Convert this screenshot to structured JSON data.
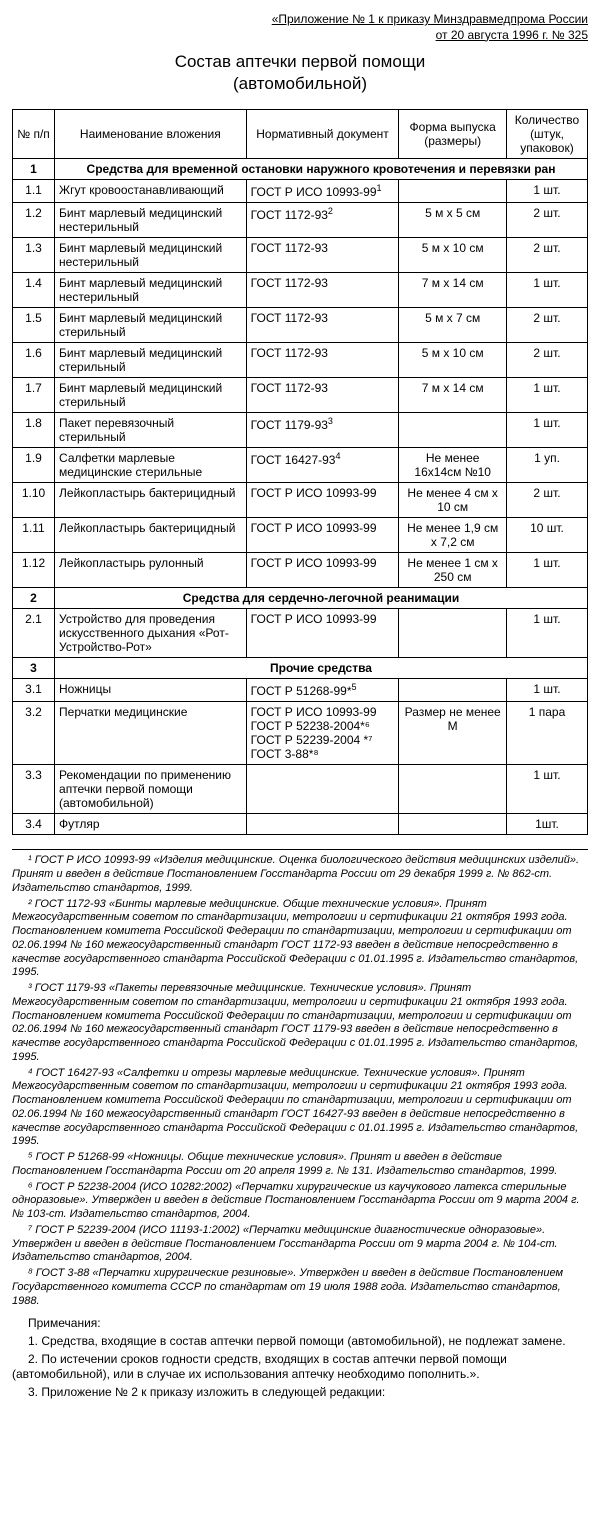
{
  "header_ref_line1": "«Приложение № 1 к приказу Минздравмедпрома России",
  "header_ref_line2": "от 20 августа 1996 г. № 325",
  "title_line1": "Состав аптечки первой помощи",
  "title_line2": "(автомобильной)",
  "columns": {
    "num": "№\nп/п",
    "name": "Наименование вложения",
    "doc": "Нормативный\nдокумент",
    "form": "Форма\nвыпуска\n(размеры)",
    "qty": "Количество\n(штук,\nупаковок)"
  },
  "sections": [
    {
      "num": "1",
      "title": "Средства для временной остановки наружного кровотечения и перевязки ран",
      "rows": [
        {
          "num": "1.1",
          "name": "Жгут кровоостанавливающий",
          "doc": "ГОСТ Р ИСО 10993-99",
          "sup": "1",
          "form": "",
          "qty": "1 шт."
        },
        {
          "num": "1.2",
          "name": "Бинт марлевый медицинский нестерильный",
          "doc": "ГОСТ 1172-93",
          "sup": "2",
          "form": "5 м х 5 см",
          "qty": "2 шт."
        },
        {
          "num": "1.3",
          "name": "Бинт марлевый медицинский нестерильный",
          "doc": "ГОСТ 1172-93",
          "form": "5 м х 10 см",
          "qty": "2 шт."
        },
        {
          "num": "1.4",
          "name": "Бинт марлевый медицинский нестерильный",
          "doc": "ГОСТ 1172-93",
          "form": "7 м х 14 см",
          "qty": "1 шт."
        },
        {
          "num": "1.5",
          "name": "Бинт марлевый медицинский стерильный",
          "doc": "ГОСТ 1172-93",
          "form": "5 м х 7 см",
          "qty": "2 шт."
        },
        {
          "num": "1.6",
          "name": "Бинт марлевый медицинский стерильный",
          "doc": "ГОСТ 1172-93",
          "form": "5 м х 10 см",
          "qty": "2 шт."
        },
        {
          "num": "1.7",
          "name": "Бинт марлевый медицинский стерильный",
          "doc": "ГОСТ 1172-93",
          "form": "7 м х 14 см",
          "qty": "1 шт."
        },
        {
          "num": "1.8",
          "name": "Пакет перевязочный стерильный",
          "doc": "ГОСТ 1179-93",
          "sup": "3",
          "form": "",
          "qty": "1 шт."
        },
        {
          "num": "1.9",
          "name": "Салфетки марлевые медицинские стерильные",
          "doc": "ГОСТ 16427-93",
          "sup": "4",
          "form": "Не менее 16х14см №10",
          "qty": "1 уп."
        },
        {
          "num": "1.10",
          "name": "Лейкопластырь бактерицидный",
          "doc": "ГОСТ Р ИСО 10993-99",
          "form": "Не менее 4 см х 10 см",
          "qty": "2 шт."
        },
        {
          "num": "1.11",
          "name": "Лейкопластырь бактерицидный",
          "doc": "ГОСТ Р ИСО 10993-99",
          "form": "Не менее 1,9 см х 7,2 см",
          "qty": "10 шт."
        },
        {
          "num": "1.12",
          "name": "Лейкопластырь рулонный",
          "doc": "ГОСТ Р ИСО 10993-99",
          "form": "Не менее 1 см х 250 см",
          "qty": "1 шт."
        }
      ]
    },
    {
      "num": "2",
      "title": "Средства для сердечно-легочной реанимации",
      "rows": [
        {
          "num": "2.1",
          "name": "Устройство для проведения искусственного дыхания «Рот-Устройство-Рот»",
          "doc": "ГОСТ Р ИСО 10993-99",
          "form": "",
          "qty": "1 шт."
        }
      ]
    },
    {
      "num": "3",
      "title": "Прочие средства",
      "rows": [
        {
          "num": "3.1",
          "name": "Ножницы",
          "doc": "ГОСТ Р 51268-99*",
          "sup": "5",
          "form": "",
          "qty": "1 шт."
        },
        {
          "num": "3.2",
          "name": "Перчатки медицинские",
          "doc": "ГОСТ Р ИСО 10993-99\nГОСТ Р 52238-2004*⁶\nГОСТ Р 52239-2004 *⁷\nГОСТ 3-88*⁸",
          "form": "Размер не менее M",
          "qty": "1 пара"
        },
        {
          "num": "3.3",
          "name": "Рекомендации по применению аптечки первой помощи (автомобильной)",
          "doc": "",
          "form": "",
          "qty": "1 шт."
        },
        {
          "num": "3.4",
          "name": "Футляр",
          "doc": "",
          "form": "",
          "qty": "1шт."
        }
      ]
    }
  ],
  "footnotes": [
    "¹ ГОСТ Р ИСО 10993-99 «Изделия медицинские. Оценка биологического действия медицинских изделий». Принят и введен в действие Постановлением Госстандарта России от 29 декабря 1999 г. № 862-ст. Издательство стандартов, 1999.",
    "² ГОСТ 1172-93 «Бинты марлевые медицинские. Общие технические условия». Принят Межгосударственным советом по стандартизации, метрологии и сертификации 21 октября 1993 года. Постановлением комитета Российской Федерации по стандартизации, метрологии и сертификации от 02.06.1994 № 160 межгосударственный стандарт ГОСТ 1172-93 введен в действие непосредственно в качестве государственного стандарта Российской Федерации с 01.01.1995 г. Издательство стандартов, 1995.",
    "³ ГОСТ 1179-93 «Пакеты перевязочные медицинские. Технические условия». Принят Межгосударственным советом по стандартизации, метрологии и сертификации 21 октября 1993 года. Постановлением комитета Российской Федерации по стандартизации, метрологии и сертификации от 02.06.1994 № 160 межгосударственный стандарт ГОСТ 1179-93 введен в действие непосредственно в качестве государственного стандарта Российской Федерации с 01.01.1995 г. Издательство стандартов, 1995.",
    "⁴ ГОСТ 16427-93 «Салфетки и отрезы марлевые медицинские. Технические условия». Принят Межгосударственным советом по стандартизации, метрологии и сертификации 21 октября 1993 года. Постановлением комитета Российской Федерации по стандартизации, метрологии и сертификации от 02.06.1994 № 160 межгосударственный стандарт ГОСТ 16427-93 введен в действие непосредственно в качестве государственного стандарта Российской Федерации с 01.01.1995 г. Издательство стандартов, 1995.",
    "⁵ ГОСТ Р 51268-99 «Ножницы. Общие технические условия». Принят и введен в действие Постановлением Госстандарта России от 20 апреля 1999 г. № 131. Издательство стандартов, 1999.",
    "⁶ ГОСТ Р 52238-2004 (ИСО 10282:2002) «Перчатки хирургические из каучукового латекса стерильные одноразовые». Утвержден и введен в действие Постановлением Госстандарта России от 9 марта 2004 г. № 103-ст. Издательство стандартов, 2004.",
    "⁷ ГОСТ Р 52239-2004 (ИСО 11193-1:2002) «Перчатки медицинские диагностические одноразовые». Утвержден и введен в действие Постановлением Госстандарта России от 9 марта 2004 г. № 104-ст. Издательство стандартов, 2004.",
    "⁸ ГОСТ 3-88 «Перчатки хирургические резиновые». Утвержден и введен в действие Постановлением Государственного комитета СССР по стандартам от 19 июля 1988 года. Издательство стандартов, 1988."
  ],
  "notes_header": "Примечания:",
  "notes": [
    "1. Средства, входящие в состав аптечки первой помощи (автомобильной), не подлежат замене.",
    "2. По истечении сроков годности средств, входящих в состав аптечки первой помощи (автомобильной), или в случае их использования аптечку необходимо пополнить.».",
    "3. Приложение № 2 к приказу изложить в  следующей редакции:"
  ]
}
